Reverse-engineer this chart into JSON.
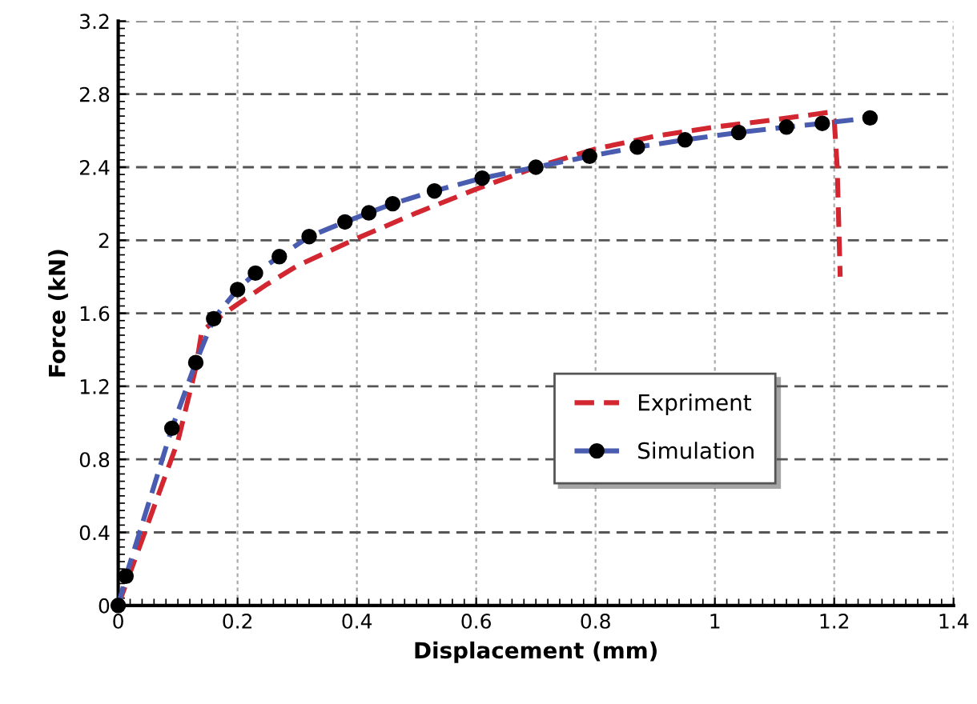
{
  "chart_data": {
    "type": "line",
    "xlabel": "Displacement (mm)",
    "ylabel": "Force (kN)",
    "xlim": [
      0,
      1.4
    ],
    "xticks": [
      0,
      0.2,
      0.4,
      0.6,
      0.8,
      1,
      1.2,
      1.4
    ],
    "ylim": [
      0,
      3.2
    ],
    "yticks": [
      0,
      0.4,
      0.8,
      1.2,
      1.6,
      2,
      2.4,
      2.8,
      3.2
    ],
    "grid": true,
    "legend": "lower right",
    "series": [
      {
        "name": "Expriment",
        "color": "#d22630",
        "line_style": "dashed",
        "marker": "none",
        "x": [
          0,
          0.05,
          0.1,
          0.13,
          0.14,
          0.17,
          0.2,
          0.25,
          0.3,
          0.4,
          0.5,
          0.6,
          0.7,
          0.8,
          0.9,
          1.0,
          1.1,
          1.19,
          1.2,
          1.205,
          1.21
        ],
        "values": [
          0,
          0.45,
          0.9,
          1.3,
          1.5,
          1.58,
          1.65,
          1.76,
          1.86,
          2.01,
          2.15,
          2.28,
          2.4,
          2.5,
          2.57,
          2.62,
          2.66,
          2.7,
          2.66,
          2.4,
          1.8
        ]
      },
      {
        "name": "Simulation",
        "color": "#4a5cb0",
        "line_style": "dashed",
        "marker": "circle",
        "x": [
          0,
          0.013,
          0.09,
          0.13,
          0.16,
          0.2,
          0.23,
          0.27,
          0.32,
          0.38,
          0.42,
          0.46,
          0.53,
          0.61,
          0.7,
          0.79,
          0.87,
          0.95,
          1.04,
          1.12,
          1.18,
          1.26
        ],
        "values": [
          0,
          0.16,
          0.97,
          1.33,
          1.57,
          1.73,
          1.82,
          1.91,
          2.02,
          2.1,
          2.15,
          2.2,
          2.27,
          2.34,
          2.4,
          2.46,
          2.51,
          2.55,
          2.59,
          2.62,
          2.64,
          2.67
        ]
      }
    ]
  }
}
